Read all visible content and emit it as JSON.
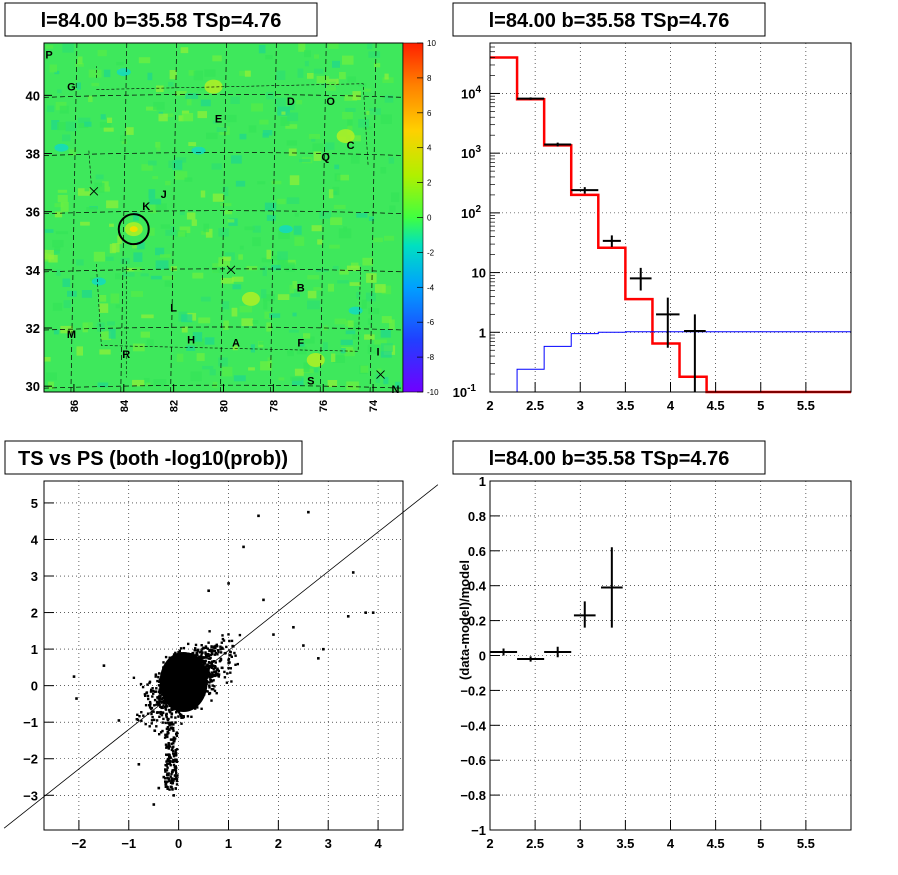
{
  "chart_data": [
    {
      "type": "heatmap",
      "title": "l=84.00 b=35.58 TSp=4.76",
      "xlim": [
        87.2,
        72.8
      ],
      "ylim": [
        29.8,
        41.8
      ],
      "x_ticks": [
        86,
        84,
        82,
        80,
        78,
        76,
        74
      ],
      "y_ticks": [
        30,
        32,
        34,
        36,
        38,
        40
      ],
      "colorbar": {
        "min": -10,
        "max": 10,
        "ticks": [
          10,
          8,
          6,
          4,
          2,
          0,
          -2,
          -4,
          -6,
          -8,
          -10
        ]
      },
      "background_value": 0,
      "marked_source": {
        "l": 83.6,
        "b": 35.4
      },
      "cross_markers": [
        {
          "l": 85.2,
          "b": 36.7
        },
        {
          "l": 79.7,
          "b": 34.0
        },
        {
          "l": 73.7,
          "b": 30.4
        }
      ],
      "region_labels": [
        {
          "text": "P",
          "l": 87.0,
          "b": 41.4
        },
        {
          "text": "G",
          "l": 86.1,
          "b": 40.3
        },
        {
          "text": "E",
          "l": 80.2,
          "b": 39.2
        },
        {
          "text": "D",
          "l": 77.3,
          "b": 39.8
        },
        {
          "text": "O",
          "l": 75.7,
          "b": 39.8
        },
        {
          "text": "C",
          "l": 74.9,
          "b": 38.3
        },
        {
          "text": "Q",
          "l": 75.9,
          "b": 37.9
        },
        {
          "text": "J",
          "l": 82.4,
          "b": 36.6
        },
        {
          "text": "K",
          "l": 83.1,
          "b": 36.2
        },
        {
          "text": "B",
          "l": 76.9,
          "b": 33.4
        },
        {
          "text": "L",
          "l": 82.0,
          "b": 32.7
        },
        {
          "text": "M",
          "l": 86.1,
          "b": 31.8
        },
        {
          "text": "H",
          "l": 81.3,
          "b": 31.6
        },
        {
          "text": "A",
          "l": 79.5,
          "b": 31.5
        },
        {
          "text": "F",
          "l": 76.9,
          "b": 31.5
        },
        {
          "text": "R",
          "l": 83.9,
          "b": 31.1
        },
        {
          "text": "I",
          "l": 73.8,
          "b": 31.2
        },
        {
          "text": "S",
          "l": 76.5,
          "b": 30.2
        },
        {
          "text": "N",
          "l": 73.1,
          "b": 29.9
        }
      ]
    },
    {
      "type": "line",
      "title": "l=84.00 b=35.58 TSp=4.76",
      "xlim": [
        2,
        6
      ],
      "y_scale": "log",
      "ylim": [
        0.1,
        70000
      ],
      "x_ticks": [
        "2",
        "2.5",
        "3",
        "3.5",
        "4",
        "4.5",
        "5",
        "5.5"
      ],
      "y_ticks": [
        "10^-1",
        "1",
        "10",
        "10^2",
        "10^3",
        "10^4"
      ],
      "series": [
        {
          "color": "#ff0000",
          "style": "step",
          "edges": [
            2.0,
            2.3,
            2.6,
            2.9,
            3.2,
            3.5,
            3.8,
            4.1,
            4.4,
            6.0
          ],
          "values": [
            40000,
            8000,
            1350,
            200,
            26,
            3.6,
            0.65,
            0.18,
            0.1
          ]
        },
        {
          "color": "#0000ff",
          "style": "step",
          "edges": [
            2.0,
            2.3,
            2.6,
            2.9,
            3.2,
            3.5,
            6.0
          ],
          "values": [
            0.1,
            0.24,
            0.58,
            0.95,
            1.0,
            1.02
          ]
        },
        {
          "color": "#000000",
          "style": "errorbar",
          "x": [
            2.45,
            2.75,
            3.05,
            3.35,
            3.67,
            3.97,
            4.27
          ],
          "y": [
            8200,
            1400,
            240,
            34,
            8,
            2,
            1.05
          ],
          "xerr": [
            0.15,
            0.15,
            0.15,
            0.1,
            0.12,
            0.13,
            0.12
          ],
          "ylo": [
            7800,
            1300,
            210,
            27,
            5,
            0.55,
            0.1
          ],
          "yhi": [
            8600,
            1500,
            270,
            42,
            12,
            3.8,
            2.0
          ]
        }
      ]
    },
    {
      "type": "scatter",
      "title": "TS vs PS (both -log10(prob))",
      "xlim": [
        -2.7,
        4.5
      ],
      "ylim": [
        -3.95,
        5.6
      ],
      "x_ticks": [
        "−2",
        "−1",
        "0",
        "1",
        "2",
        "3",
        "4"
      ],
      "y_ticks": [
        "−3",
        "−2",
        "−1",
        "0",
        "1",
        "2",
        "3",
        "4",
        "5"
      ],
      "reference_line": [
        [
          -3.5,
          -3.9
        ],
        [
          5.2,
          5.5
        ]
      ],
      "outliers": [
        [
          1.6,
          4.65
        ],
        [
          2.6,
          4.75
        ],
        [
          1.3,
          3.8
        ],
        [
          3.5,
          3.1
        ],
        [
          1.0,
          2.8
        ],
        [
          3.75,
          2.0
        ],
        [
          3.9,
          2.0
        ],
        [
          3.4,
          1.9
        ],
        [
          2.9,
          1.0
        ],
        [
          2.8,
          0.75
        ],
        [
          -2.1,
          0.25
        ],
        [
          -2.05,
          -0.35
        ],
        [
          -1.2,
          -0.95
        ],
        [
          -0.5,
          -3.25
        ],
        [
          -0.4,
          -2.8
        ],
        [
          -0.8,
          -2.15
        ],
        [
          1.7,
          2.35
        ],
        [
          2.3,
          1.6
        ],
        [
          1.9,
          1.4
        ],
        [
          -1.5,
          0.55
        ],
        [
          -0.1,
          -3.0
        ],
        [
          -0.3,
          -2.5
        ],
        [
          0.6,
          2.6
        ],
        [
          2.5,
          1.1
        ]
      ]
    },
    {
      "type": "scatter",
      "title": "l=84.00 b=35.58 TSp=4.76",
      "xlim": [
        2,
        6
      ],
      "ylim": [
        -1,
        1
      ],
      "ylabel": "(data-model)/model",
      "x_ticks": [
        "2",
        "2.5",
        "3",
        "3.5",
        "4",
        "4.5",
        "5",
        "5.5"
      ],
      "y_ticks": [
        "−1",
        "−0.8",
        "−0.6",
        "−0.4",
        "−0.2",
        "0",
        "0.2",
        "0.4",
        "0.6",
        "0.8",
        "1"
      ],
      "points": [
        {
          "x": 2.15,
          "y": 0.02,
          "xerr": 0.15,
          "ylo": 0.0,
          "yhi": 0.04
        },
        {
          "x": 2.45,
          "y": -0.02,
          "xerr": 0.15,
          "ylo": -0.035,
          "yhi": -0.005
        },
        {
          "x": 2.75,
          "y": 0.02,
          "xerr": 0.15,
          "ylo": -0.01,
          "yhi": 0.05
        },
        {
          "x": 3.05,
          "y": 0.23,
          "xerr": 0.12,
          "ylo": 0.16,
          "yhi": 0.31
        },
        {
          "x": 3.35,
          "y": 0.39,
          "xerr": 0.12,
          "ylo": 0.16,
          "yhi": 0.62
        }
      ]
    }
  ]
}
